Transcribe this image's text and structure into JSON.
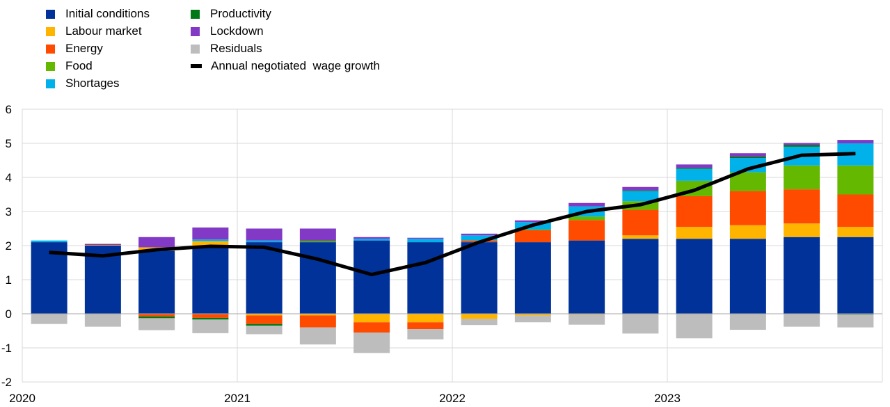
{
  "chart_data": {
    "type": "bar",
    "stacked": true,
    "title": "",
    "xlabel": "",
    "ylabel": "",
    "ylim": [
      -2,
      6
    ],
    "yticks": [
      -2,
      -1,
      0,
      1,
      2,
      3,
      4,
      5,
      6
    ],
    "y_tick_labels": [
      "-2",
      "-1",
      "0",
      "1",
      "2",
      "3",
      "4",
      "5",
      "6"
    ],
    "x_tick_labels": [
      "2020",
      "2021",
      "2022",
      "2023"
    ],
    "categories": [
      "2020Q1",
      "2020Q2",
      "2020Q3",
      "2020Q4",
      "2021Q1",
      "2021Q2",
      "2021Q3",
      "2021Q4",
      "2022Q1",
      "2022Q2",
      "2022Q3",
      "2022Q4",
      "2023Q1",
      "2023Q2",
      "2023Q3",
      "2023Q4"
    ],
    "grid": true,
    "legend_position": "top-left",
    "series": [
      {
        "name": "Initial conditions",
        "color": "#003299",
        "values": [
          2.1,
          2.0,
          1.85,
          1.98,
          2.1,
          2.1,
          2.15,
          2.1,
          2.1,
          2.1,
          2.15,
          2.2,
          2.2,
          2.2,
          2.25,
          2.25
        ]
      },
      {
        "name": "Labour market",
        "color": "#FFB400",
        "values": [
          0.0,
          0.02,
          0.1,
          0.15,
          -0.05,
          -0.05,
          -0.25,
          -0.25,
          -0.15,
          -0.05,
          -0.02,
          0.1,
          0.35,
          0.4,
          0.4,
          0.3
        ]
      },
      {
        "name": "Energy",
        "color": "#FF4B00",
        "values": [
          0.0,
          0.0,
          -0.08,
          -0.12,
          -0.25,
          -0.35,
          -0.3,
          -0.2,
          0.05,
          0.35,
          0.6,
          0.75,
          0.9,
          1.0,
          1.0,
          0.95
        ]
      },
      {
        "name": "Food",
        "color": "#65B800",
        "values": [
          0.0,
          0.0,
          0.0,
          0.0,
          0.0,
          0.03,
          0.0,
          0.0,
          0.0,
          0.02,
          0.1,
          0.25,
          0.45,
          0.55,
          0.7,
          0.85
        ]
      },
      {
        "name": "Shortages",
        "color": "#00B1EA",
        "values": [
          0.05,
          0.0,
          0.0,
          0.05,
          0.05,
          0.0,
          0.05,
          0.1,
          0.15,
          0.22,
          0.3,
          0.3,
          0.35,
          0.42,
          0.55,
          0.65
        ]
      },
      {
        "name": "Productivity",
        "color": "#007816",
        "values": [
          0.0,
          0.0,
          -0.05,
          -0.05,
          -0.05,
          0.02,
          0.0,
          0.0,
          0.0,
          0.0,
          0.0,
          0.02,
          0.03,
          0.04,
          0.05,
          -0.02
        ]
      },
      {
        "name": "Lockdown",
        "color": "#8139C6",
        "values": [
          0.0,
          0.03,
          0.3,
          0.35,
          0.35,
          0.35,
          0.05,
          0.03,
          0.05,
          0.05,
          0.1,
          0.1,
          0.1,
          0.1,
          0.06,
          0.1
        ]
      },
      {
        "name": "Residuals",
        "color": "#BDBDBD",
        "values": [
          -0.3,
          -0.38,
          -0.35,
          -0.4,
          -0.25,
          -0.5,
          -0.6,
          -0.3,
          -0.18,
          -0.2,
          -0.3,
          -0.58,
          -0.72,
          -0.47,
          -0.38,
          -0.38
        ]
      }
    ],
    "line": {
      "name": "Annual negotiated  wage growth",
      "color": "#000000",
      "values": [
        1.8,
        1.7,
        1.88,
        1.98,
        1.95,
        1.6,
        1.15,
        1.5,
        2.1,
        2.6,
        3.0,
        3.2,
        3.62,
        4.25,
        4.65,
        4.7
      ]
    }
  }
}
